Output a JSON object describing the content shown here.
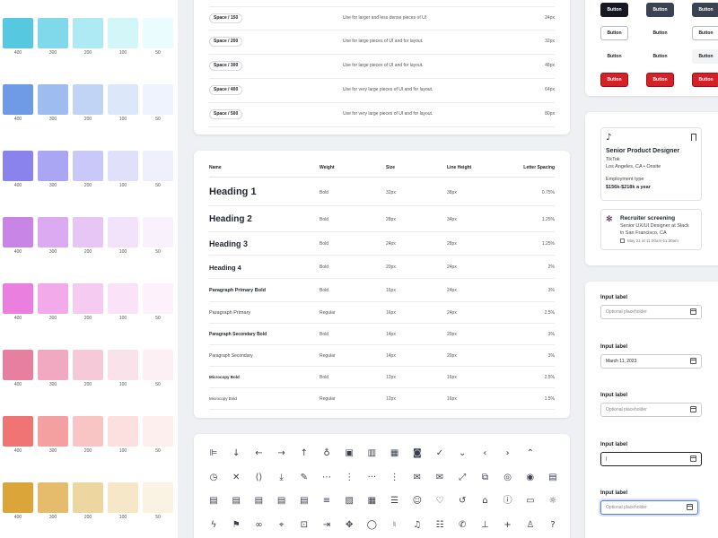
{
  "palette": {
    "labels": [
      "400",
      "300",
      "200",
      "100",
      "50"
    ],
    "rows": [
      {
        "colors": [
          "#56c8df",
          "#7fd9ea",
          "#aeeaf4",
          "#d3f6f9",
          "#eafcfd"
        ]
      },
      {
        "colors": [
          "#6f9ae6",
          "#9ebcef",
          "#c2d4f6",
          "#dde7fa",
          "#eef3fd"
        ]
      },
      {
        "colors": [
          "#8a83ee",
          "#aaa6f3",
          "#cac8f8",
          "#e1e0fb",
          "#f0f0fd"
        ]
      },
      {
        "colors": [
          "#c985e6",
          "#dcaaf0",
          "#e7c6f5",
          "#f2e2fa",
          "#f9f1fc"
        ]
      },
      {
        "colors": [
          "#ea7fe0",
          "#f2aaeb",
          "#f6cbf2",
          "#fae2f8",
          "#fdf1fc"
        ]
      },
      {
        "colors": [
          "#e77fa0",
          "#f0a9c0",
          "#f5c9d8",
          "#fae2ea",
          "#fdf0f4"
        ]
      },
      {
        "colors": [
          "#f07474",
          "#f5a0a0",
          "#f9c4c4",
          "#fcdfdf",
          "#feefef"
        ]
      },
      {
        "colors": [
          "#dba53a",
          "#e5bc6b",
          "#eed6a0",
          "#f5e7c8",
          "#faf3e3"
        ]
      }
    ]
  },
  "spacing": {
    "rows": [
      {
        "token": "Space / 150",
        "desc": "Use for larger and less dense pieces of UI",
        "px": "24px"
      },
      {
        "token": "Space / 200",
        "desc": "Use for large pieces of UI and for layout.",
        "px": "32px"
      },
      {
        "token": "Space / 300",
        "desc": "Use for large pieces of UI and for layout.",
        "px": "48px"
      },
      {
        "token": "Space / 400",
        "desc": "Use for very large pieces of UI and for layout.",
        "px": "64px"
      },
      {
        "token": "Space / 500",
        "desc": "Use for very large pieces of UI and for layout.",
        "px": "80px"
      }
    ]
  },
  "typography": {
    "headers": {
      "name": "Name",
      "weight": "Weight",
      "size": "Size",
      "line_height": "Line Height",
      "letter_spacing": "Letter Spacing"
    },
    "rows": [
      {
        "name": "Heading 1",
        "weight": "Bold",
        "size": "32px",
        "line_height": "38px",
        "letter_spacing": "0.75%"
      },
      {
        "name": "Heading 2",
        "weight": "Bold",
        "size": "28px",
        "line_height": "34px",
        "letter_spacing": "1.25%"
      },
      {
        "name": "Heading 3",
        "weight": "Bold",
        "size": "24px",
        "line_height": "28px",
        "letter_spacing": "1.25%"
      },
      {
        "name": "Heading 4",
        "weight": "Bold",
        "size": "20px",
        "line_height": "24px",
        "letter_spacing": "2%"
      },
      {
        "name": "Paragraph Primary Bold",
        "weight": "Bold",
        "size": "16px",
        "line_height": "24px",
        "letter_spacing": "3%"
      },
      {
        "name": "Paragraph Primary",
        "weight": "Regular",
        "size": "16px",
        "line_height": "24px",
        "letter_spacing": "2.5%"
      },
      {
        "name": "Paragraph Secondary Bold",
        "weight": "Bold",
        "size": "14px",
        "line_height": "20px",
        "letter_spacing": "3%"
      },
      {
        "name": "Paragraph Secondary",
        "weight": "Regular",
        "size": "14px",
        "line_height": "20px",
        "letter_spacing": "3%"
      },
      {
        "name": "Microcopy Bold",
        "weight": "Bold",
        "size": "12px",
        "line_height": "16px",
        "letter_spacing": "2.5%"
      },
      {
        "name": "Microcopy Bold",
        "weight": "Regular",
        "size": "12px",
        "line_height": "16px",
        "letter_spacing": "1.5%"
      }
    ]
  },
  "icons": {
    "rows": [
      [
        {
          "name": "align-left-icon",
          "glyph": "⊫"
        },
        {
          "name": "arrow-down-icon",
          "glyph": "↓"
        },
        {
          "name": "arrow-left-icon",
          "glyph": "←"
        },
        {
          "name": "arrow-right-icon",
          "glyph": "→"
        },
        {
          "name": "arrow-up-icon",
          "glyph": "↑"
        },
        {
          "name": "award-icon",
          "glyph": "♁"
        },
        {
          "name": "briefcase-icon",
          "glyph": "▣"
        },
        {
          "name": "building-icon",
          "glyph": "▥"
        },
        {
          "name": "calendar-icon",
          "glyph": "▦"
        },
        {
          "name": "camera-icon",
          "glyph": "◙"
        },
        {
          "name": "check-icon",
          "glyph": "✓"
        },
        {
          "name": "chevron-down-icon",
          "glyph": "⌄"
        },
        {
          "name": "chevron-left-icon",
          "glyph": "‹"
        },
        {
          "name": "chevron-right-icon",
          "glyph": "›"
        },
        {
          "name": "chevron-up-icon",
          "glyph": "⌃"
        }
      ],
      [
        {
          "name": "clock-icon",
          "glyph": "◷"
        },
        {
          "name": "close-icon",
          "glyph": "✕"
        },
        {
          "name": "code-icon",
          "glyph": "⟨⟩"
        },
        {
          "name": "download-icon",
          "glyph": "⤓"
        },
        {
          "name": "edit-icon",
          "glyph": "✎"
        },
        {
          "name": "more-horizontal-icon",
          "glyph": "⋯"
        },
        {
          "name": "more-vertical-circle-icon",
          "glyph": "⋮"
        },
        {
          "name": "more-horizontal-plain-icon",
          "glyph": "···"
        },
        {
          "name": "more-vertical-icon",
          "glyph": "⋮"
        },
        {
          "name": "mail-icon",
          "glyph": "✉"
        },
        {
          "name": "mail-open-icon",
          "glyph": "✉"
        },
        {
          "name": "expand-icon",
          "glyph": "⤢"
        },
        {
          "name": "external-link-icon",
          "glyph": "⧉"
        },
        {
          "name": "eye-off-icon",
          "glyph": "◎"
        },
        {
          "name": "eye-icon",
          "glyph": "◉"
        },
        {
          "name": "file-icon",
          "glyph": "▤"
        }
      ],
      [
        {
          "name": "file-text-icon",
          "glyph": "▤"
        },
        {
          "name": "file-plus-icon",
          "glyph": "▤"
        },
        {
          "name": "file-minus-icon",
          "glyph": "▤"
        },
        {
          "name": "file-check-icon",
          "glyph": "▤"
        },
        {
          "name": "file-edit-icon",
          "glyph": "▤"
        },
        {
          "name": "filter-icon",
          "glyph": "≡"
        },
        {
          "name": "image-icon",
          "glyph": "▨"
        },
        {
          "name": "grid-icon",
          "glyph": "▦"
        },
        {
          "name": "menu-icon",
          "glyph": "☰"
        },
        {
          "name": "smile-icon",
          "glyph": "☺"
        },
        {
          "name": "heart-icon",
          "glyph": "♡"
        },
        {
          "name": "history-icon",
          "glyph": "↺"
        },
        {
          "name": "home-icon",
          "glyph": "⌂"
        },
        {
          "name": "info-icon",
          "glyph": "ⓘ"
        },
        {
          "name": "laptop-icon",
          "glyph": "▭"
        },
        {
          "name": "lightbulb-icon",
          "glyph": "☼"
        }
      ],
      [
        {
          "name": "lightning-icon",
          "glyph": "ϟ"
        },
        {
          "name": "flag-icon",
          "glyph": "⚑"
        },
        {
          "name": "link-icon",
          "glyph": "∞"
        },
        {
          "name": "map-pin-icon",
          "glyph": "⌖"
        },
        {
          "name": "lock-icon",
          "glyph": "⊡"
        },
        {
          "name": "log-in-icon",
          "glyph": "⇥"
        },
        {
          "name": "puzzle-icon",
          "glyph": "✥"
        },
        {
          "name": "message-icon",
          "glyph": "◯"
        },
        {
          "name": "microphone-icon",
          "glyph": "♮"
        },
        {
          "name": "bell-icon",
          "glyph": "♫"
        },
        {
          "name": "list-icon",
          "glyph": "☷"
        },
        {
          "name": "phone-icon",
          "glyph": "✆"
        },
        {
          "name": "pin-icon",
          "glyph": "⊥"
        },
        {
          "name": "plus-icon",
          "glyph": "+"
        },
        {
          "name": "user-icon",
          "glyph": "♙"
        },
        {
          "name": "help-icon",
          "glyph": "?"
        }
      ]
    ]
  },
  "buttons": {
    "label": "Button",
    "rows": [
      [
        {
          "style": "dark"
        },
        {
          "style": "slate"
        },
        {
          "style": "slate"
        }
      ],
      [
        {
          "style": "outline"
        },
        {
          "style": "plain"
        },
        {
          "style": "outline"
        }
      ],
      [
        {
          "style": "plain"
        },
        {
          "style": "plain"
        },
        {
          "style": "plain"
        }
      ],
      [
        {
          "style": "danger"
        },
        {
          "style": "danger"
        },
        {
          "style": "danger"
        }
      ]
    ],
    "colors": {
      "dark": "#151821",
      "slate": "#3b4352",
      "danger": "#d62027"
    }
  },
  "jobs": {
    "primary": {
      "brand": "TikTok",
      "title": "Senior Product Designer",
      "company": "TikTok",
      "location": "Los Angeles, CA • Onsite",
      "employment_label": "Employment type",
      "salary": "$156k-$218k a year"
    },
    "secondary": {
      "title": "Recruiter screening",
      "line1": "Senior UX/UI Designer at Slack",
      "line2": "in San Francisco, CA",
      "date": "May 21 at 11:00am-11:30am"
    }
  },
  "inputs": [
    {
      "label": "Input label",
      "value": "Optional placeholder",
      "state": "placeholder"
    },
    {
      "label": "Input label",
      "value": "March 11, 2023",
      "state": "filled"
    },
    {
      "label": "Input label",
      "value": "Optional placeholder",
      "state": "placeholder"
    },
    {
      "label": "Input label",
      "value": "|",
      "state": "typing"
    },
    {
      "label": "Input label",
      "value": "Optional placeholder",
      "state": "focused"
    }
  ]
}
